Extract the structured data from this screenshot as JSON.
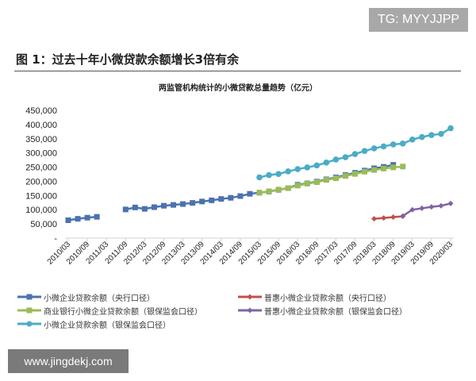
{
  "watermark_top": "TG: MYYJJPP",
  "watermark_bottom": "www.jingdekj.com",
  "figure_title": "图 1：过去十年小微贷款余额增长3倍有余",
  "chart_data": {
    "type": "line",
    "title": "两监管机构统计的小微贷款总量趋势（亿元）",
    "xlabel": "",
    "ylabel": "",
    "ylim": [
      0,
      450000
    ],
    "yticks": [
      0,
      50000,
      100000,
      150000,
      200000,
      250000,
      300000,
      350000,
      400000,
      450000
    ],
    "ytick_labels": [
      "-",
      "50,000",
      "100,000",
      "150,000",
      "200,000",
      "250,000",
      "300,000",
      "350,000",
      "400,000",
      "450,000"
    ],
    "grid": false,
    "legend_position": "bottom",
    "categories": [
      "2010/03",
      "2010/06",
      "2010/09",
      "2010/12",
      "2011/03",
      "2011/06",
      "2011/09",
      "2011/12",
      "2012/03",
      "2012/06",
      "2012/09",
      "2012/12",
      "2013/03",
      "2013/06",
      "2013/09",
      "2013/12",
      "2014/03",
      "2014/06",
      "2014/09",
      "2014/12",
      "2015/03",
      "2015/06",
      "2015/09",
      "2015/12",
      "2016/03",
      "2016/06",
      "2016/09",
      "2016/12",
      "2017/03",
      "2017/06",
      "2017/09",
      "2017/12",
      "2018/03",
      "2018/06",
      "2018/09",
      "2018/12",
      "2019/03",
      "2019/06",
      "2019/09",
      "2019/12",
      "2020/03"
    ],
    "xtick_labels": [
      "2010/03",
      "2010/09",
      "2011/03",
      "2011/09",
      "2012/03",
      "2012/09",
      "2013/03",
      "2013/09",
      "2014/03",
      "2014/09",
      "2015/03",
      "2015/09",
      "2016/03",
      "2016/09",
      "2017/03",
      "2017/09",
      "2018/03",
      "2018/09",
      "2019/03",
      "2019/09",
      "2020/03"
    ],
    "series": [
      {
        "name": "小微企业贷款余额（央行口径）",
        "color": "#4a72b0",
        "marker": "square",
        "values": [
          63000,
          68000,
          72000,
          75000,
          null,
          null,
          101000,
          108000,
          103000,
          109000,
          114000,
          117000,
          120000,
          124000,
          129000,
          133000,
          138000,
          142000,
          148000,
          156000,
          160000,
          164000,
          170000,
          176000,
          188000,
          193000,
          199000,
          207000,
          214000,
          222000,
          230000,
          238000,
          246000,
          251000,
          258000,
          null,
          null,
          null,
          null,
          null,
          null
        ]
      },
      {
        "name": "普惠小微企业贷款余额（央行口径）",
        "color": "#c0504d",
        "marker": "diamond",
        "values": [
          null,
          null,
          null,
          null,
          null,
          null,
          null,
          null,
          null,
          null,
          null,
          null,
          null,
          null,
          null,
          null,
          null,
          null,
          null,
          null,
          null,
          null,
          null,
          null,
          null,
          null,
          null,
          null,
          null,
          null,
          null,
          null,
          68000,
          71000,
          74000,
          77000,
          null,
          null,
          null,
          null,
          null
        ]
      },
      {
        "name": "商业银行小微企业贷款余额（银保监会口径）",
        "color": "#9bbb59",
        "marker": "square",
        "values": [
          null,
          null,
          null,
          null,
          null,
          null,
          null,
          null,
          null,
          null,
          null,
          null,
          null,
          null,
          null,
          null,
          null,
          null,
          null,
          null,
          160000,
          165000,
          171000,
          176000,
          185000,
          192000,
          197000,
          205000,
          211000,
          219000,
          226000,
          234000,
          240000,
          245000,
          249000,
          252000,
          null,
          null,
          null,
          null,
          null
        ]
      },
      {
        "name": "普惠小微企业贷款余额（银保监会口径）",
        "color": "#8064a2",
        "marker": "diamond",
        "values": [
          null,
          null,
          null,
          null,
          null,
          null,
          null,
          null,
          null,
          null,
          null,
          null,
          null,
          null,
          null,
          null,
          null,
          null,
          null,
          null,
          null,
          null,
          null,
          null,
          null,
          null,
          null,
          null,
          null,
          null,
          null,
          null,
          null,
          null,
          null,
          78000,
          100000,
          105000,
          110000,
          114000,
          122000
        ]
      },
      {
        "name": "小微企业贷款余额（银保监会口径）",
        "color": "#4bacc6",
        "marker": "circle",
        "values": [
          null,
          null,
          null,
          null,
          null,
          null,
          null,
          null,
          null,
          null,
          null,
          null,
          null,
          null,
          null,
          null,
          null,
          null,
          null,
          null,
          214000,
          222000,
          226000,
          235000,
          243000,
          249000,
          256000,
          266000,
          277000,
          285000,
          296000,
          307000,
          316000,
          323000,
          330000,
          333000,
          347000,
          356000,
          363000,
          367000,
          387000
        ]
      }
    ]
  }
}
